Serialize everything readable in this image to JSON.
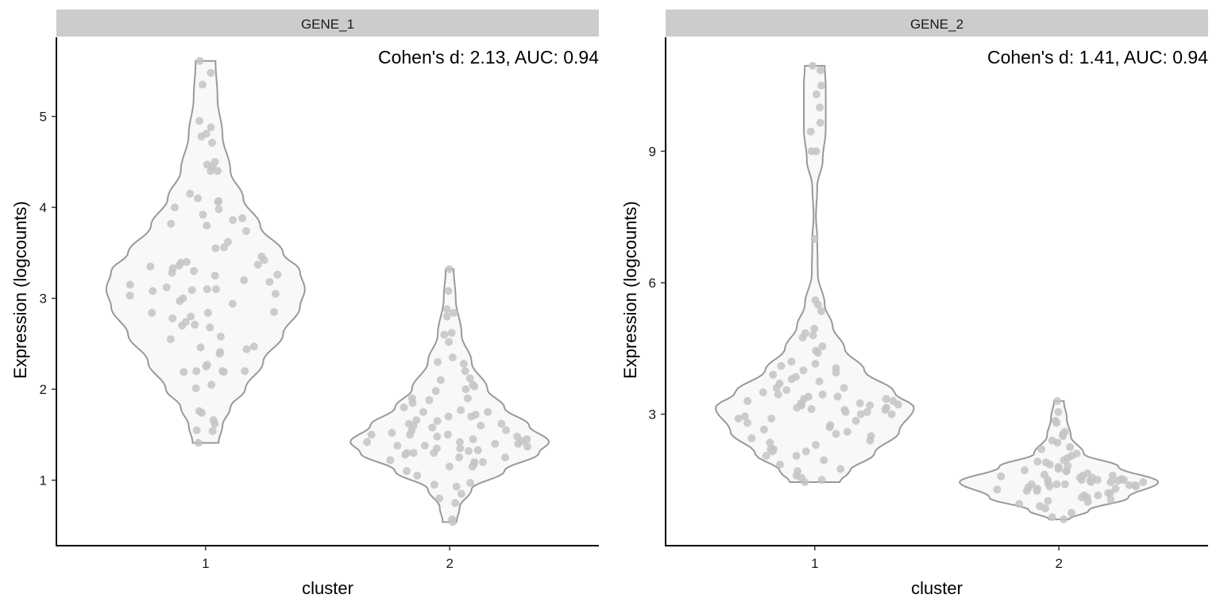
{
  "chart_data": [
    {
      "type": "violin",
      "panel_title": "GENE_1",
      "annotation": "Cohen's d: 2.13, AUC: 0.94",
      "xlabel": "cluster",
      "ylabel": "Expression (logcounts)",
      "categories": [
        "1",
        "2"
      ],
      "yticks": [
        1,
        2,
        3,
        4,
        5
      ],
      "ylim": [
        0.28,
        5.87
      ],
      "groups": [
        {
          "category": "1",
          "density": [
            [
              1.41,
              0.13
            ],
            [
              1.6,
              0.17
            ],
            [
              1.8,
              0.25
            ],
            [
              2.0,
              0.4
            ],
            [
              2.3,
              0.58
            ],
            [
              2.6,
              0.78
            ],
            [
              2.9,
              0.95
            ],
            [
              3.1,
              1.0
            ],
            [
              3.3,
              0.95
            ],
            [
              3.5,
              0.78
            ],
            [
              3.8,
              0.55
            ],
            [
              4.1,
              0.38
            ],
            [
              4.4,
              0.25
            ],
            [
              4.8,
              0.17
            ],
            [
              5.2,
              0.12
            ],
            [
              5.61,
              0.1
            ]
          ],
          "points": [
            5.61,
            5.48,
            5.35,
            4.95,
            4.88,
            4.81,
            4.78,
            4.71,
            4.5,
            4.47,
            4.45,
            4.4,
            4.4,
            4.15,
            4.1,
            4.07,
            4.06,
            4.0,
            3.98,
            3.92,
            3.88,
            3.86,
            3.82,
            3.8,
            3.74,
            3.62,
            3.56,
            3.55,
            3.46,
            3.42,
            3.4,
            3.39,
            3.37,
            3.36,
            3.35,
            3.33,
            3.3,
            3.28,
            3.26,
            3.25,
            3.2,
            3.18,
            3.15,
            3.12,
            3.1,
            3.1,
            3.09,
            3.08,
            3.05,
            3.03,
            3.0,
            2.97,
            2.94,
            2.85,
            2.84,
            2.84,
            2.8,
            2.78,
            2.74,
            2.71,
            2.7,
            2.68,
            2.58,
            2.55,
            2.47,
            2.46,
            2.44,
            2.41,
            2.39,
            2.27,
            2.25,
            2.2,
            2.2,
            2.2,
            2.19,
            2.19,
            2.05,
            2.01,
            1.76,
            1.74,
            1.66,
            1.62,
            1.55,
            1.54,
            1.41
          ]
        },
        {
          "category": "2",
          "density": [
            [
              0.54,
              0.07
            ],
            [
              0.7,
              0.1
            ],
            [
              0.9,
              0.22
            ],
            [
              1.1,
              0.55
            ],
            [
              1.3,
              0.9
            ],
            [
              1.42,
              1.0
            ],
            [
              1.6,
              0.8
            ],
            [
              1.8,
              0.55
            ],
            [
              2.0,
              0.38
            ],
            [
              2.3,
              0.22
            ],
            [
              2.6,
              0.12
            ],
            [
              3.0,
              0.06
            ],
            [
              3.32,
              0.04
            ]
          ],
          "points": [
            3.32,
            3.08,
            2.88,
            2.84,
            2.8,
            2.62,
            2.6,
            2.52,
            2.35,
            2.3,
            2.28,
            2.2,
            2.12,
            2.05,
            2.03,
            2.0,
            1.98,
            1.9,
            1.88,
            1.85,
            1.8,
            1.77,
            1.75,
            1.72,
            1.7,
            1.7,
            1.66,
            1.62,
            1.6,
            1.58,
            1.55,
            1.52,
            1.5,
            1.5,
            1.48,
            1.45,
            1.43,
            1.42,
            1.4,
            1.38,
            1.37,
            1.35,
            1.33,
            1.3,
            1.3,
            1.28,
            1.25,
            1.22,
            1.2,
            1.2,
            1.18,
            1.15,
            1.1,
            1.05,
            0.97,
            0.95,
            0.93,
            0.85,
            0.8,
            0.75,
            0.57,
            0.54,
            1.45,
            1.4,
            1.35,
            1.5,
            1.6,
            1.25,
            1.3,
            1.55,
            1.65,
            1.75,
            1.42,
            1.38,
            1.32,
            1.9,
            2.1,
            1.15,
            1.48,
            1.62
          ]
        }
      ]
    },
    {
      "type": "violin",
      "panel_title": "GENE_2",
      "annotation": "Cohen's d: 1.41, AUC: 0.94",
      "xlabel": "cluster",
      "ylabel": "Expression (logcounts)",
      "categories": [
        "1",
        "2"
      ],
      "yticks": [
        3,
        6,
        9
      ],
      "ylim": [
        0.0,
        11.6
      ],
      "groups": [
        {
          "category": "1",
          "density": [
            [
              1.45,
              0.25
            ],
            [
              1.7,
              0.35
            ],
            [
              2.1,
              0.6
            ],
            [
              2.6,
              0.85
            ],
            [
              3.15,
              1.0
            ],
            [
              3.5,
              0.8
            ],
            [
              4.0,
              0.5
            ],
            [
              4.5,
              0.3
            ],
            [
              5.0,
              0.18
            ],
            [
              5.5,
              0.1
            ],
            [
              6.2,
              0.03
            ],
            [
              7.0,
              0.025
            ],
            [
              7.5,
              0.012
            ],
            [
              8.2,
              0.025
            ],
            [
              8.8,
              0.08
            ],
            [
              9.5,
              0.11
            ],
            [
              10.5,
              0.11
            ],
            [
              10.95,
              0.1
            ]
          ],
          "points": [
            10.95,
            10.85,
            10.5,
            10.3,
            10.0,
            9.65,
            9.45,
            9.0,
            9.0,
            7.0,
            5.6,
            5.5,
            5.35,
            4.95,
            4.85,
            4.8,
            4.75,
            4.55,
            4.45,
            4.4,
            4.15,
            4.05,
            4.0,
            3.95,
            3.9,
            3.85,
            3.75,
            3.7,
            3.6,
            3.55,
            3.45,
            3.4,
            3.35,
            3.3,
            3.25,
            3.2,
            3.15,
            3.1,
            3.05,
            3.0,
            2.9,
            2.85,
            2.7,
            2.6,
            2.5,
            2.45,
            2.35,
            2.2,
            2.2,
            2.15,
            2.05,
            1.95,
            1.75,
            1.7,
            1.6,
            1.55,
            1.5,
            1.45,
            3.4,
            3.3,
            3.2,
            3.1,
            3.0,
            3.15,
            3.25,
            2.8,
            2.9,
            3.05,
            3.35,
            2.65,
            2.4,
            2.3,
            3.5,
            3.6,
            2.75,
            4.2,
            4.1,
            3.8,
            2.55,
            3.45,
            3.12,
            3.22,
            2.95,
            2.15,
            2.05,
            1.85
          ]
        },
        {
          "category": "2",
          "density": [
            [
              0.6,
              0.1
            ],
            [
              0.8,
              0.3
            ],
            [
              1.1,
              0.7
            ],
            [
              1.45,
              1.0
            ],
            [
              1.8,
              0.6
            ],
            [
              2.1,
              0.25
            ],
            [
              2.5,
              0.12
            ],
            [
              2.9,
              0.08
            ],
            [
              3.3,
              0.05
            ]
          ],
          "points": [
            3.3,
            3.05,
            2.85,
            2.8,
            2.6,
            2.55,
            2.5,
            2.35,
            2.25,
            2.1,
            2.05,
            2.0,
            1.95,
            1.9,
            1.85,
            1.8,
            1.75,
            1.7,
            1.65,
            1.6,
            1.55,
            1.5,
            1.5,
            1.48,
            1.45,
            1.42,
            1.4,
            1.38,
            1.35,
            1.3,
            1.28,
            1.25,
            1.2,
            1.15,
            1.1,
            1.05,
            1.0,
            0.9,
            0.85,
            0.75,
            0.65,
            0.6,
            1.45,
            1.5,
            1.55,
            1.4,
            1.35,
            1.6,
            1.7,
            1.3,
            1.25,
            1.45,
            1.5,
            1.62,
            1.72,
            1.82,
            1.92,
            1.2,
            1.15,
            1.4,
            1.48,
            1.52,
            1.58,
            1.33,
            1.38,
            2.2,
            2.4,
            1.02,
            0.95,
            1.1
          ]
        }
      ]
    }
  ],
  "colors": {
    "strip_bg": "#cccccc",
    "violin_fill": "#f8f8f8",
    "violin_stroke": "#999999",
    "point": "#c4c4c4"
  }
}
